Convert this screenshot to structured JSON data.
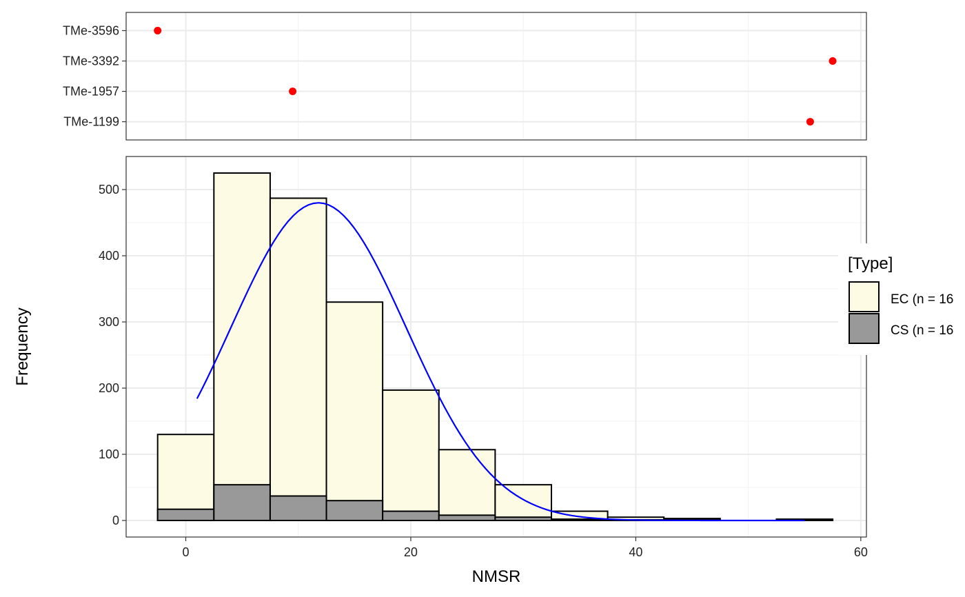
{
  "chart_data": [
    {
      "type": "scatter",
      "categories": [
        "TMe-3596",
        "TMe-3392",
        "TMe-1957",
        "TMe-1199"
      ],
      "points": [
        {
          "category": "TMe-3596",
          "x": -2.5
        },
        {
          "category": "TMe-3392",
          "x": 57.5
        },
        {
          "category": "TMe-1957",
          "x": 9.5
        },
        {
          "category": "TMe-1199",
          "x": 55.5
        }
      ],
      "point_color": "#ff0000",
      "xlim": [
        -5.3,
        60.5
      ],
      "grid": true
    },
    {
      "type": "bar",
      "xlabel": "NMSR",
      "ylabel": "Frequency",
      "xlim": [
        -5.3,
        60.5
      ],
      "ylim": [
        -25,
        550
      ],
      "x_ticks": [
        0,
        20,
        40,
        60
      ],
      "y_ticks": [
        0,
        100,
        200,
        300,
        400,
        500
      ],
      "bin_width": 5,
      "bin_centers": [
        0,
        5,
        10,
        15,
        20,
        25,
        30,
        35,
        40,
        45,
        50,
        55
      ],
      "series": [
        {
          "name": "EC (n = 16",
          "color": "#fdfbe3",
          "values": [
            130,
            525,
            487,
            330,
            197,
            107,
            54,
            14,
            5,
            3,
            0,
            2
          ]
        },
        {
          "name": "CS (n = 16",
          "color": "#999999",
          "values": [
            17,
            54,
            37,
            30,
            14,
            8,
            5,
            2,
            1,
            1,
            0,
            1
          ]
        }
      ],
      "curve": {
        "type": "normal-density",
        "color": "#0000ff",
        "x_range": [
          1,
          55
        ],
        "peak_x": 11.8,
        "peak_y": 480,
        "sd": 7.8
      },
      "legend": {
        "title": "[Type]",
        "placement": "right"
      },
      "grid": true
    }
  ]
}
